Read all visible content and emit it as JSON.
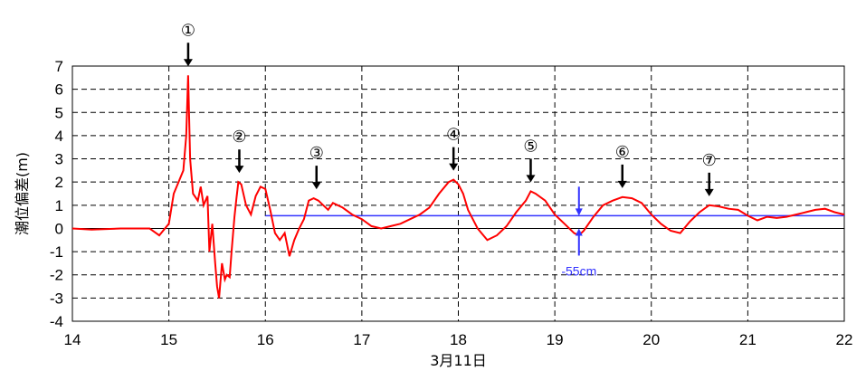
{
  "chart_data": {
    "type": "line",
    "xlabel": "3月11日",
    "ylabel": "潮位偏差(m)",
    "xlim": [
      14,
      22
    ],
    "ylim": [
      -4,
      7
    ],
    "x_ticks": [
      "14",
      "15",
      "16",
      "17",
      "18",
      "19",
      "20",
      "21",
      "22"
    ],
    "y_ticks": [
      "-4",
      "-3",
      "-2",
      "-1",
      "0",
      "1",
      "2",
      "3",
      "4",
      "5",
      "6",
      "7"
    ],
    "grid": true,
    "colors": {
      "series": "#ff0000",
      "reference": "#3333ff",
      "note": "#3333ff",
      "arrow": "#000000"
    },
    "reference_line": {
      "from_x": 16.0,
      "y": 0.55
    },
    "series": [
      {
        "x": [
          14.0,
          14.2,
          14.5,
          14.8,
          14.9,
          15.0,
          15.05,
          15.1,
          15.15,
          15.18,
          15.2,
          15.22,
          15.25,
          15.3,
          15.33,
          15.36,
          15.4,
          15.42,
          15.45,
          15.48,
          15.5,
          15.52,
          15.55,
          15.58,
          15.6,
          15.63,
          15.65,
          15.68,
          15.7,
          15.72,
          15.75,
          15.8,
          15.85,
          15.9,
          15.95,
          16.0,
          16.05,
          16.1,
          16.15,
          16.2,
          16.25,
          16.3,
          16.35,
          16.4,
          16.45,
          16.5,
          16.55,
          16.6,
          16.65,
          16.7,
          16.8,
          16.9,
          17.0,
          17.1,
          17.2,
          17.3,
          17.4,
          17.5,
          17.6,
          17.7,
          17.8,
          17.9,
          17.95,
          18.0,
          18.05,
          18.1,
          18.2,
          18.3,
          18.4,
          18.5,
          18.6,
          18.7,
          18.75,
          18.8,
          18.9,
          19.0,
          19.1,
          19.2,
          19.25,
          19.3,
          19.4,
          19.5,
          19.6,
          19.7,
          19.8,
          19.9,
          20.0,
          20.1,
          20.2,
          20.3,
          20.4,
          20.5,
          20.6,
          20.7,
          20.8,
          20.9,
          21.0,
          21.1,
          21.2,
          21.3,
          21.4,
          21.5,
          21.6,
          21.7,
          21.8,
          21.9,
          22.0
        ],
        "y": [
          0.0,
          -0.05,
          0.0,
          0.0,
          -0.3,
          0.2,
          1.5,
          2.0,
          2.5,
          4.0,
          6.6,
          3.0,
          1.5,
          1.2,
          1.8,
          1.0,
          1.4,
          -1.0,
          0.2,
          -1.5,
          -2.5,
          -3.0,
          -1.5,
          -2.2,
          -2.0,
          -2.1,
          -1.0,
          0.5,
          1.3,
          2.0,
          1.9,
          1.0,
          0.6,
          1.4,
          1.8,
          1.7,
          0.8,
          -0.2,
          -0.5,
          -0.2,
          -1.2,
          -0.5,
          0.0,
          0.4,
          1.2,
          1.3,
          1.2,
          1.0,
          0.8,
          1.1,
          0.9,
          0.6,
          0.4,
          0.1,
          0.0,
          0.1,
          0.2,
          0.4,
          0.6,
          0.9,
          1.5,
          2.0,
          2.1,
          1.9,
          1.5,
          0.8,
          0.0,
          -0.5,
          -0.3,
          0.1,
          0.7,
          1.2,
          1.6,
          1.5,
          1.2,
          0.6,
          0.2,
          -0.2,
          -0.3,
          -0.1,
          0.5,
          1.0,
          1.2,
          1.35,
          1.3,
          1.1,
          0.6,
          0.2,
          -0.1,
          -0.2,
          0.3,
          0.7,
          1.0,
          0.95,
          0.85,
          0.8,
          0.55,
          0.35,
          0.5,
          0.45,
          0.5,
          0.6,
          0.7,
          0.8,
          0.85,
          0.7,
          0.6
        ]
      }
    ],
    "markers": [
      {
        "label": "①",
        "x": 15.2,
        "y": 6.6
      },
      {
        "label": "②",
        "x": 15.73,
        "y": 2.0
      },
      {
        "label": "③",
        "x": 16.53,
        "y": 1.3
      },
      {
        "label": "④",
        "x": 17.95,
        "y": 2.1
      },
      {
        "label": "⑤",
        "x": 18.75,
        "y": 1.6
      },
      {
        "label": "⑥",
        "x": 19.7,
        "y": 1.35
      },
      {
        "label": "⑦",
        "x": 20.6,
        "y": 1.0
      }
    ],
    "annotation": {
      "text": "-55cm",
      "x": 19.25,
      "y_top": 0.55,
      "y_bottom": 0.0
    }
  }
}
